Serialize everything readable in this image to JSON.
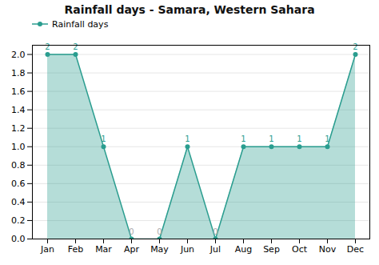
{
  "chart_data": {
    "type": "area",
    "title": "Rainfall days - Samara, Western Sahara",
    "categories": [
      "Jan",
      "Feb",
      "Mar",
      "Apr",
      "May",
      "Jun",
      "Jul",
      "Aug",
      "Sep",
      "Oct",
      "Nov",
      "Dec"
    ],
    "series": [
      {
        "name": "Rainfall days",
        "color": "#2a9d8f",
        "marker": "circle",
        "values": [
          2,
          2,
          1,
          0,
          0,
          1,
          0,
          1,
          1,
          1,
          1,
          2
        ]
      }
    ],
    "ylim": [
      0,
      2.1
    ],
    "yticks": [
      {
        "value": 0.0,
        "label": "0.0"
      },
      0.2,
      0.4,
      0.6,
      0.8,
      {
        "value": 1.0,
        "label": "1.0"
      },
      1.2,
      1.4,
      1.6,
      1.8,
      {
        "value": 2.0,
        "label": "2.0"
      }
    ],
    "grid": true,
    "legend": "upper left",
    "data_labels": true
  }
}
